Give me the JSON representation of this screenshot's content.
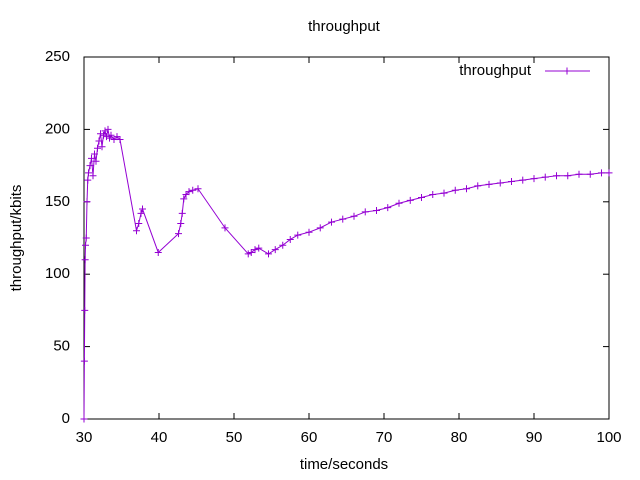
{
  "chart_data": {
    "type": "line",
    "title": "throughput",
    "x_label": "time/seconds",
    "y_label": "throughput/kbits",
    "xlim": [
      30,
      100
    ],
    "xticks": [
      30,
      40,
      50,
      60,
      70,
      80,
      90,
      100
    ],
    "ylim": [
      0,
      250
    ],
    "yticks": [
      0,
      50,
      100,
      150,
      200,
      250
    ],
    "legend": "top-right",
    "marker": "plus",
    "series": [
      {
        "name": "throughput",
        "color": "#9400d3",
        "x": [
          30.0,
          30.05,
          30.1,
          30.15,
          30.2,
          30.3,
          30.4,
          30.5,
          30.6,
          30.8,
          31.0,
          31.2,
          31.4,
          31.6,
          31.8,
          32.0,
          32.2,
          32.4,
          32.6,
          32.8,
          33.0,
          33.2,
          33.4,
          33.6,
          34.0,
          34.4,
          34.8,
          37.0,
          37.3,
          37.6,
          37.8,
          39.9,
          42.6,
          42.9,
          43.1,
          43.3,
          43.6,
          44.0,
          44.5,
          45.2,
          48.8,
          51.9,
          52.3,
          52.8,
          53.3,
          54.6,
          55.5,
          56.5,
          57.5,
          58.5,
          60.0,
          61.5,
          63.0,
          64.5,
          66.0,
          67.5,
          69.0,
          70.5,
          72.0,
          73.5,
          75.0,
          76.5,
          78.0,
          79.5,
          81.0,
          82.5,
          84.0,
          85.5,
          87.0,
          88.5,
          90.0,
          91.5,
          93.0,
          94.5,
          96.0,
          97.5,
          99.0,
          100.0
        ],
        "values": [
          0,
          40,
          75,
          110,
          120,
          125,
          150,
          165,
          170,
          175,
          180,
          168,
          183,
          178,
          187,
          192,
          197,
          188,
          196,
          199,
          195,
          200,
          194,
          196,
          193,
          195,
          193,
          130,
          135,
          142,
          145,
          115,
          128,
          135,
          142,
          152,
          155,
          157,
          158,
          159,
          132,
          114,
          115,
          117,
          118,
          114,
          117,
          120,
          124,
          127,
          129,
          132,
          136,
          138,
          140,
          143,
          144,
          146,
          149,
          151,
          153,
          155,
          156,
          158,
          159,
          161,
          162,
          163,
          164,
          165,
          166,
          167,
          168,
          168,
          169,
          169,
          170,
          170
        ]
      }
    ]
  }
}
